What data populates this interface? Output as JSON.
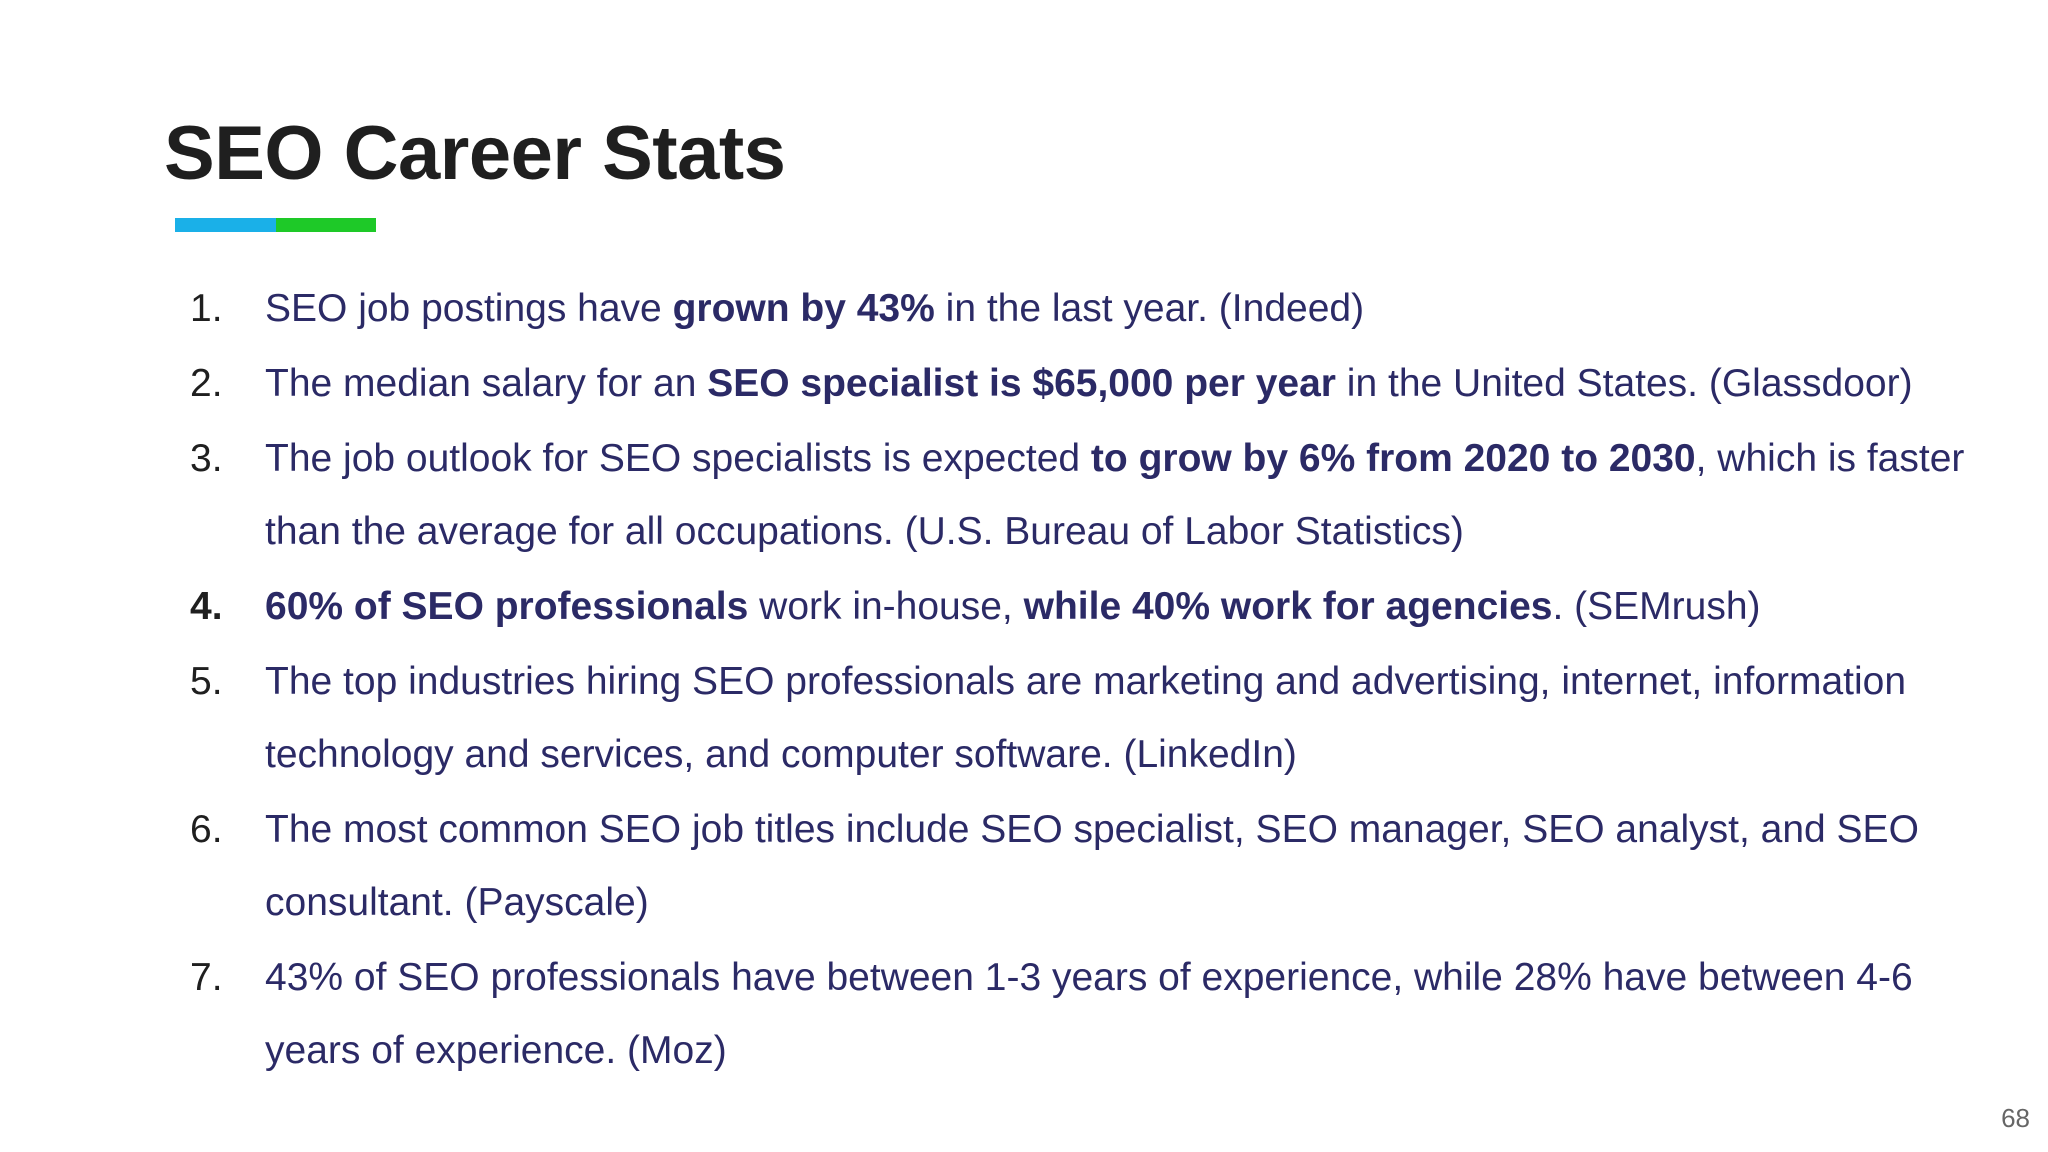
{
  "slide": {
    "title": "SEO Career Stats",
    "page_number": "68",
    "accent_colors": [
      "#1ab0e8",
      "#1ec928"
    ],
    "text_color": "#2b2a66",
    "items": [
      {
        "number": "1.",
        "p1": "SEO job postings have ",
        "b1": "grown by 43%",
        "p2": " in the last year. (Indeed)",
        "b2": "",
        "p3": ""
      },
      {
        "number": "2.",
        "p1": "The median salary for an ",
        "b1": "SEO specialist is $65,000 per year",
        "p2": " in the United States. (Glassdoor)",
        "b2": "",
        "p3": ""
      },
      {
        "number": "3.",
        "p1": "The job outlook for SEO specialists is expected ",
        "b1": "to grow by 6% from 2020 to 2030",
        "p2": ", which is faster than the average for all occupations. (U.S. Bureau of Labor Statistics)",
        "b2": "",
        "p3": ""
      },
      {
        "number": "4.",
        "p1": "",
        "b1": "60% of SEO professionals",
        "p2": " work in-house, ",
        "b2": "while 40% work for agencies",
        "p3": ". (SEMrush)"
      },
      {
        "number": "5.",
        "p1": "The top industries hiring SEO professionals are marketing and advertising, internet, information technology and services, and computer software. (LinkedIn)",
        "b1": "",
        "p2": "",
        "b2": "",
        "p3": ""
      },
      {
        "number": "6.",
        "p1": "The most common SEO job titles include SEO specialist, SEO manager, SEO analyst, and SEO consultant. (Payscale)",
        "b1": "",
        "p2": "",
        "b2": "",
        "p3": ""
      },
      {
        "number": "7.",
        "p1": "43% of SEO professionals have between 1-3 years of experience, while 28% have between 4-6 years of experience. (Moz)",
        "b1": "",
        "p2": "",
        "b2": "",
        "p3": ""
      }
    ]
  }
}
